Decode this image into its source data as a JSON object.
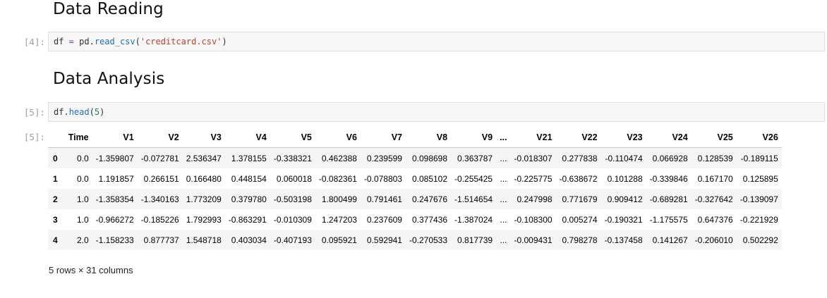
{
  "headings": {
    "reading": "Data Reading",
    "analysis": "Data Analysis"
  },
  "cells": [
    {
      "prompt": "[4]:",
      "code_var": "df",
      "code_op": " = ",
      "code_mod": "pd.",
      "code_fn": "read_csv",
      "code_open": "(",
      "code_str": "'creditcard.csv'",
      "code_close": ")"
    },
    {
      "prompt": "[5]:",
      "code_var": "df.",
      "code_fn": "head",
      "code_open": "(",
      "code_num": "5",
      "code_close": ")",
      "out_prompt": "[5]:"
    }
  ],
  "dataframe": {
    "columns": [
      "",
      "Time",
      "V1",
      "V2",
      "V3",
      "V4",
      "V5",
      "V6",
      "V7",
      "V8",
      "V9",
      "...",
      "V21",
      "V22",
      "V23",
      "V24",
      "V25",
      "V26"
    ],
    "rows": [
      [
        "0",
        "0.0",
        "-1.359807",
        "-0.072781",
        "2.536347",
        "1.378155",
        "-0.338321",
        "0.462388",
        "0.239599",
        "0.098698",
        "0.363787",
        "...",
        "-0.018307",
        "0.277838",
        "-0.110474",
        "0.066928",
        "0.128539",
        "-0.189115"
      ],
      [
        "1",
        "0.0",
        "1.191857",
        "0.266151",
        "0.166480",
        "0.448154",
        "0.060018",
        "-0.082361",
        "-0.078803",
        "0.085102",
        "-0.255425",
        "...",
        "-0.225775",
        "-0.638672",
        "0.101288",
        "-0.339846",
        "0.167170",
        "0.125895"
      ],
      [
        "2",
        "1.0",
        "-1.358354",
        "-1.340163",
        "1.773209",
        "0.379780",
        "-0.503198",
        "1.800499",
        "0.791461",
        "0.247676",
        "-1.514654",
        "...",
        "0.247998",
        "0.771679",
        "0.909412",
        "-0.689281",
        "-0.327642",
        "-0.139097"
      ],
      [
        "3",
        "1.0",
        "-0.966272",
        "-0.185226",
        "1.792993",
        "-0.863291",
        "-0.010309",
        "1.247203",
        "0.237609",
        "0.377436",
        "-1.387024",
        "...",
        "-0.108300",
        "0.005274",
        "-0.190321",
        "-1.175575",
        "0.647376",
        "-0.221929"
      ],
      [
        "4",
        "2.0",
        "-1.158233",
        "0.877737",
        "1.548718",
        "0.403034",
        "-0.407193",
        "0.095921",
        "0.592941",
        "-0.270533",
        "0.817739",
        "...",
        "-0.009431",
        "0.798278",
        "-0.137458",
        "0.141267",
        "-0.206010",
        "0.502292"
      ]
    ],
    "summary": "5 rows × 31 columns"
  },
  "colors": {
    "code_bg": "#f6f6f6",
    "prompt": "#9e9e9e",
    "row_stripe": "#f5f5f5"
  }
}
